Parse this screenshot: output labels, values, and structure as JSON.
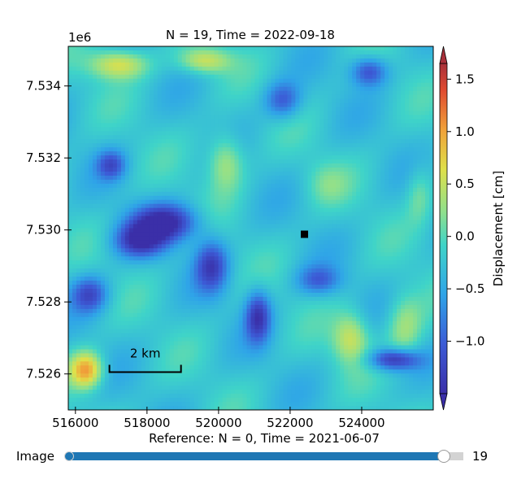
{
  "chart_data": {
    "type": "heatmap",
    "title": "N = 19, Time = 2022-09-18",
    "xlabel": "Reference: N = 0, Time = 2021-06-07",
    "ylabel": "",
    "y_offset_label": "1e6",
    "xlim": [
      515800,
      526000
    ],
    "ylim": [
      7525.0,
      7535.1
    ],
    "x_ticks": [
      516000,
      518000,
      520000,
      522000,
      524000
    ],
    "x_tick_labels": [
      "516000",
      "518000",
      "520000",
      "522000",
      "524000"
    ],
    "y_ticks": [
      7526,
      7528,
      7530,
      7532,
      7534
    ],
    "y_tick_labels": [
      "7.526",
      "7.528",
      "7.530",
      "7.532",
      "7.534"
    ],
    "colorbar": {
      "label": "Displacement [cm]",
      "range": [
        -1.5,
        1.65
      ],
      "ticks": [
        -1.0,
        -0.5,
        0.0,
        0.5,
        1.0,
        1.5
      ],
      "tick_labels": [
        "−1.0",
        "−0.5",
        "0.0",
        "0.5",
        "1.0",
        "1.5"
      ],
      "colormap": "jet",
      "extend": "both"
    },
    "features": {
      "low_zones": [
        {
          "x": 518500,
          "y": 7530.2,
          "value": -1.3,
          "sx": 900,
          "sy": 500
        },
        {
          "x": 517800,
          "y": 7529.7,
          "value": -1.1,
          "sx": 700,
          "sy": 450
        },
        {
          "x": 519800,
          "y": 7529.0,
          "value": -1.0,
          "sx": 450,
          "sy": 700
        },
        {
          "x": 521100,
          "y": 7527.6,
          "value": -1.1,
          "sx": 350,
          "sy": 700
        },
        {
          "x": 524900,
          "y": 7526.4,
          "value": -1.2,
          "sx": 700,
          "sy": 300
        },
        {
          "x": 516400,
          "y": 7528.2,
          "value": -0.9,
          "sx": 500,
          "sy": 500
        },
        {
          "x": 521800,
          "y": 7533.6,
          "value": -0.8,
          "sx": 500,
          "sy": 500
        },
        {
          "x": 524200,
          "y": 7534.4,
          "value": -0.9,
          "sx": 500,
          "sy": 400
        },
        {
          "x": 522800,
          "y": 7528.6,
          "value": -0.7,
          "sx": 600,
          "sy": 400
        },
        {
          "x": 517000,
          "y": 7531.8,
          "value": -0.8,
          "sx": 400,
          "sy": 400
        }
      ],
      "high_zones": [
        {
          "x": 516300,
          "y": 7526.1,
          "value": 1.3,
          "sx": 450,
          "sy": 500
        },
        {
          "x": 517200,
          "y": 7534.6,
          "value": 0.9,
          "sx": 800,
          "sy": 400
        },
        {
          "x": 519600,
          "y": 7534.7,
          "value": 0.8,
          "sx": 700,
          "sy": 350
        },
        {
          "x": 520200,
          "y": 7531.9,
          "value": 0.7,
          "sx": 500,
          "sy": 800
        },
        {
          "x": 523700,
          "y": 7527.0,
          "value": 0.8,
          "sx": 500,
          "sy": 700
        },
        {
          "x": 525200,
          "y": 7527.3,
          "value": 0.6,
          "sx": 500,
          "sy": 900
        },
        {
          "x": 523000,
          "y": 7531.3,
          "value": 0.3,
          "sx": 600,
          "sy": 600
        },
        {
          "x": 525600,
          "y": 7531.0,
          "value": 0.4,
          "sx": 350,
          "sy": 800
        }
      ]
    },
    "marker": {
      "x": 522400,
      "y": 7529.88,
      "shape": "square",
      "color": "#000000"
    },
    "scale_bar": {
      "label": "2 km",
      "x_start": 516950,
      "x_end": 518950,
      "y": 7526.05
    }
  },
  "slider": {
    "label": "Image",
    "value": 19,
    "value_text": "19",
    "min": 0,
    "max": 20
  },
  "colors": {
    "background": "#ffffff",
    "slider_fill": "#1f77b4",
    "slider_track": "#d3d3d3"
  }
}
